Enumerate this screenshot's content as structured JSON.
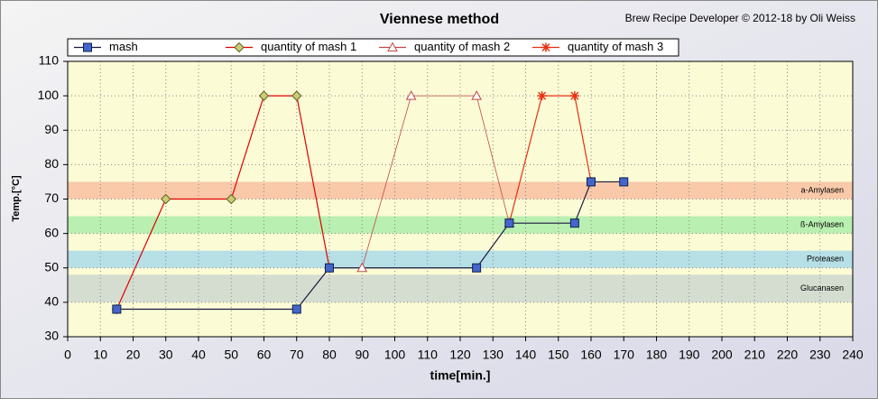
{
  "chart_data": {
    "type": "line",
    "title": "Viennese method",
    "subtitle": "Brew Recipe Developer © 2012-18 by Oli Weiss",
    "x_label": "time[min.]",
    "y_label": "Temp.[°C]",
    "xlim": [
      0,
      240
    ],
    "ylim": [
      30,
      110
    ],
    "xticks": [
      0,
      10,
      20,
      30,
      40,
      50,
      60,
      70,
      80,
      90,
      100,
      110,
      120,
      130,
      140,
      150,
      160,
      170,
      180,
      190,
      200,
      210,
      220,
      230,
      240
    ],
    "yticks": [
      30,
      40,
      50,
      60,
      70,
      80,
      90,
      100,
      110
    ],
    "grid": true,
    "legend": "top",
    "bands": [
      {
        "label": "a-Amylasen",
        "range": [
          70,
          75
        ],
        "color": "#f9c9a9"
      },
      {
        "label": "ß-Amylasen",
        "range": [
          60,
          65
        ],
        "color": "#b9efb0"
      },
      {
        "label": "Proteasen",
        "range": [
          50,
          55
        ],
        "color": "#b6dfe6"
      },
      {
        "label": "Glucanasen",
        "range": [
          40,
          48
        ],
        "color": "#d5ddd0"
      }
    ],
    "series": [
      {
        "name": "mash",
        "color": "#1a1a40",
        "marker": "square",
        "x": [
          15,
          70,
          80,
          125,
          135,
          155,
          160,
          170
        ],
        "values": [
          38,
          38,
          50,
          50,
          63,
          63,
          75,
          75
        ]
      },
      {
        "name": "quantity of mash 1",
        "color": "#e00000",
        "marker": "diamond",
        "x": [
          15,
          30,
          50,
          60,
          70,
          80
        ],
        "values": [
          38,
          70,
          70,
          100,
          100,
          50
        ]
      },
      {
        "name": "quantity of mash 2",
        "color": "#c04848",
        "marker": "triangle",
        "x": [
          90,
          105,
          125,
          135
        ],
        "values": [
          50,
          100,
          100,
          63
        ]
      },
      {
        "name": "quantity of mash 3",
        "color": "#e83010",
        "marker": "asterisk",
        "x": [
          135,
          145,
          155,
          160
        ],
        "values": [
          63,
          100,
          100,
          75
        ]
      }
    ]
  }
}
